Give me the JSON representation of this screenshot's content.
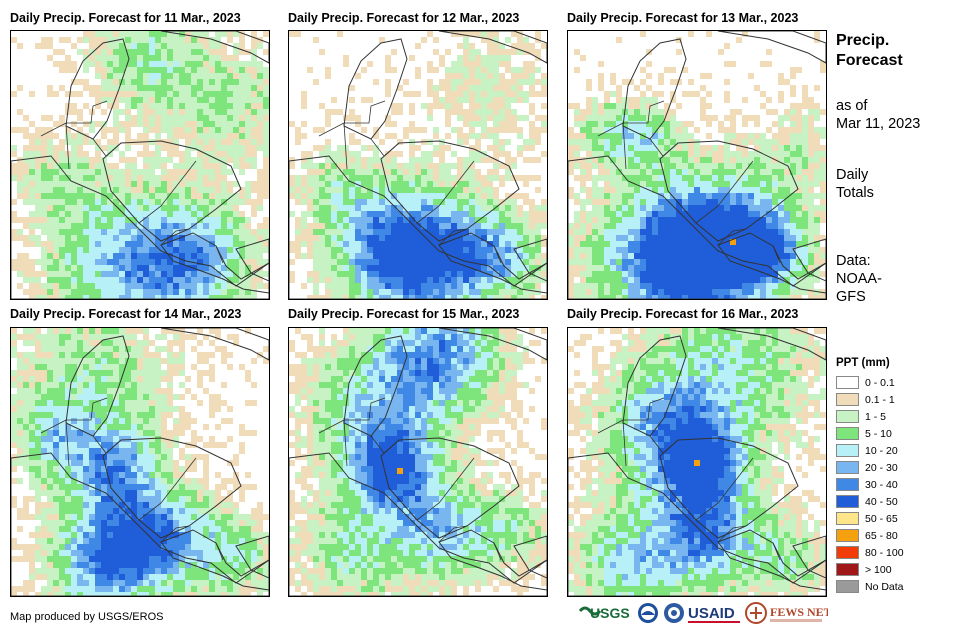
{
  "panels": [
    {
      "title": "Daily Precip. Forecast for 11 Mar., 2023",
      "forecast_date": "11 Mar., 2023",
      "variant": 1
    },
    {
      "title": "Daily Precip. Forecast for 12 Mar., 2023",
      "forecast_date": "12 Mar., 2023",
      "variant": 2
    },
    {
      "title": "Daily Precip. Forecast for 13 Mar., 2023",
      "forecast_date": "13 Mar., 2023",
      "variant": 3
    },
    {
      "title": "Daily Precip. Forecast for 14 Mar., 2023",
      "forecast_date": "14 Mar., 2023",
      "variant": 4
    },
    {
      "title": "Daily Precip. Forecast for 15 Mar., 2023",
      "forecast_date": "15 Mar., 2023",
      "variant": 5
    },
    {
      "title": "Daily Precip. Forecast for 16 Mar., 2023",
      "forecast_date": "16 Mar., 2023",
      "variant": 6
    }
  ],
  "side": {
    "title_line1": "Precip.",
    "title_line2": "Forecast",
    "asof_line1": "as of",
    "asof_line2": "Mar 11, 2023",
    "totals_line1": "Daily",
    "totals_line2": "Totals",
    "data_line1": "Data:",
    "data_line2": "NOAA-",
    "data_line3": "GFS"
  },
  "legend": {
    "title": "PPT (mm)",
    "items": [
      {
        "label": "0 - 0.1",
        "color": "#ffffff"
      },
      {
        "label": "0.1 - 1",
        "color": "#f0dcb9"
      },
      {
        "label": "1 - 5",
        "color": "#c6f2c4"
      },
      {
        "label": "5 - 10",
        "color": "#7de57b"
      },
      {
        "label": "10 - 20",
        "color": "#b8f0f7"
      },
      {
        "label": "20 - 30",
        "color": "#79b6ef"
      },
      {
        "label": "30 - 40",
        "color": "#3f88e6"
      },
      {
        "label": "40 - 50",
        "color": "#1f5ed8"
      },
      {
        "label": "50 - 65",
        "color": "#fde68a"
      },
      {
        "label": "65 - 80",
        "color": "#f5a00f"
      },
      {
        "label": "80 - 100",
        "color": "#f23c08"
      },
      {
        "label": "> 100",
        "color": "#a01818"
      },
      {
        "label": "No Data",
        "color": "#9a9a9a"
      }
    ]
  },
  "footer": {
    "credit": "Map produced by USGS/EROS",
    "logos": [
      "USGS",
      "NOAA",
      "USAID",
      "FEWS NET"
    ]
  }
}
